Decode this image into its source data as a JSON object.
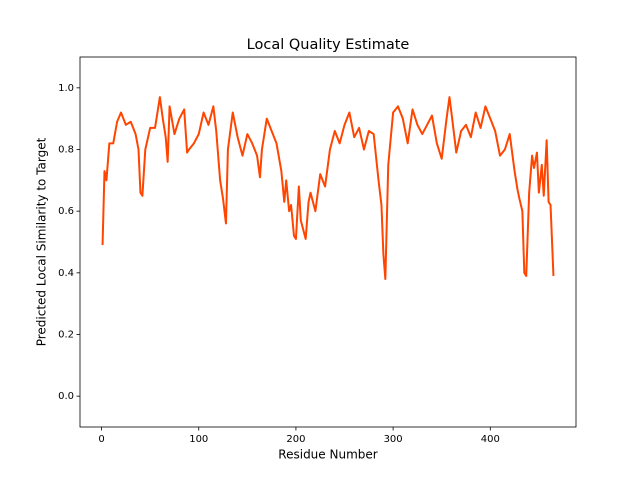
{
  "chart_data": {
    "type": "line",
    "title": "Local Quality Estimate",
    "x_label": "Residue Number",
    "y_label": "Predicted Local Similarity to Target",
    "color": "#ff4500",
    "x": [
      1,
      3,
      5,
      8,
      12,
      16,
      20,
      25,
      30,
      35,
      38,
      40,
      42,
      45,
      50,
      55,
      58,
      60,
      63,
      66,
      68,
      70,
      75,
      80,
      85,
      88,
      90,
      95,
      100,
      105,
      110,
      115,
      118,
      122,
      125,
      128,
      130,
      135,
      140,
      145,
      150,
      155,
      160,
      163,
      165,
      170,
      175,
      180,
      185,
      188,
      190,
      193,
      195,
      198,
      200,
      203,
      205,
      210,
      213,
      215,
      220,
      225,
      230,
      235,
      240,
      245,
      250,
      255,
      260,
      265,
      270,
      275,
      280,
      285,
      288,
      290,
      292,
      295,
      300,
      305,
      310,
      315,
      320,
      325,
      330,
      335,
      340,
      345,
      350,
      355,
      358,
      360,
      365,
      370,
      375,
      380,
      385,
      390,
      395,
      400,
      405,
      410,
      415,
      420,
      425,
      428,
      430,
      433,
      435,
      437,
      440,
      443,
      445,
      448,
      450,
      453,
      455,
      458,
      460,
      462,
      465
    ],
    "values": [
      0.49,
      0.73,
      0.7,
      0.82,
      0.82,
      0.89,
      0.92,
      0.88,
      0.89,
      0.85,
      0.8,
      0.66,
      0.65,
      0.8,
      0.87,
      0.87,
      0.93,
      0.97,
      0.9,
      0.84,
      0.76,
      0.94,
      0.85,
      0.9,
      0.93,
      0.79,
      0.8,
      0.82,
      0.85,
      0.92,
      0.88,
      0.94,
      0.86,
      0.7,
      0.64,
      0.56,
      0.8,
      0.92,
      0.84,
      0.78,
      0.85,
      0.82,
      0.78,
      0.71,
      0.8,
      0.9,
      0.86,
      0.82,
      0.73,
      0.63,
      0.7,
      0.6,
      0.62,
      0.52,
      0.51,
      0.68,
      0.57,
      0.51,
      0.63,
      0.66,
      0.6,
      0.72,
      0.68,
      0.8,
      0.86,
      0.82,
      0.88,
      0.92,
      0.84,
      0.87,
      0.8,
      0.86,
      0.85,
      0.7,
      0.62,
      0.46,
      0.38,
      0.75,
      0.92,
      0.94,
      0.9,
      0.82,
      0.93,
      0.88,
      0.85,
      0.88,
      0.91,
      0.82,
      0.77,
      0.9,
      0.97,
      0.92,
      0.79,
      0.86,
      0.88,
      0.84,
      0.92,
      0.87,
      0.94,
      0.9,
      0.86,
      0.78,
      0.8,
      0.85,
      0.73,
      0.67,
      0.64,
      0.6,
      0.4,
      0.39,
      0.66,
      0.78,
      0.74,
      0.79,
      0.66,
      0.75,
      0.65,
      0.83,
      0.63,
      0.62,
      0.39
    ],
    "xlim": [
      -22.2,
      488.2
    ],
    "xticks": [
      0,
      100,
      200,
      300,
      400
    ],
    "ylim": [
      -0.1,
      1.1
    ],
    "yticks": [
      {
        "value": 0,
        "label": "0.0"
      },
      0.2,
      0.4,
      0.6,
      0.8,
      {
        "value": 1,
        "label": "1.0"
      }
    ]
  }
}
